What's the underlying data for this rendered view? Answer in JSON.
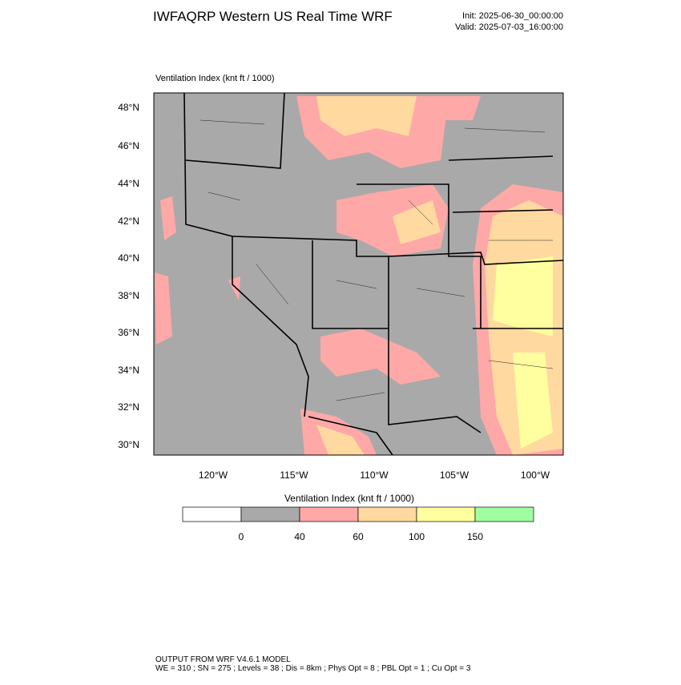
{
  "header": {
    "title": "IWFAQRP Western US Real Time WRF",
    "init": "Init: 2025-06-30_00:00:00",
    "valid": "Valid: 2025-07-03_16:00:00"
  },
  "map": {
    "label": "Ventilation Index   (knt ft / 1000)",
    "lat_labels": [
      "48°N",
      "46°N",
      "44°N",
      "42°N",
      "40°N",
      "38°N",
      "36°N",
      "34°N",
      "32°N",
      "30°N"
    ],
    "lon_labels": [
      "120°W",
      "115°W",
      "110°W",
      "105°W",
      "100°W"
    ]
  },
  "colorbar": {
    "title": "Ventilation Index   (knt ft / 1000)",
    "labels": [
      "0",
      "40",
      "60",
      "100",
      "150"
    ]
  },
  "footer": {
    "lines": [
      "OUTPUT FROM WRF V4.6.1 MODEL",
      "WE = 310 ; SN = 275 ; Levels = 38 ; Dis = 8km ; Phys Opt = 8 ; PBL Opt = 1 ; Cu Opt = 3"
    ]
  }
}
